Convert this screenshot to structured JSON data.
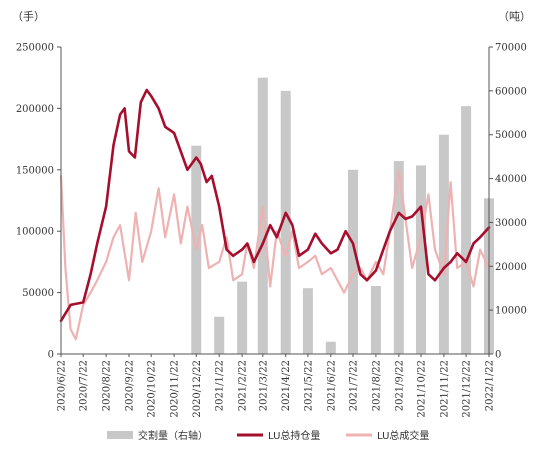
{
  "chart_data": {
    "type": "bar+line",
    "left_unit": "（手）",
    "right_unit": "（吨）",
    "y_left": {
      "ticks": [
        "0",
        "50000",
        "100000",
        "150000",
        "200000",
        "250000"
      ],
      "ylim": [
        0,
        250000
      ]
    },
    "y_right": {
      "ticks": [
        "0",
        "10000",
        "20000",
        "30000",
        "40000",
        "50000",
        "60000",
        "70000"
      ],
      "ylim": [
        0,
        70000
      ]
    },
    "x_ticks": [
      "2020/6/22",
      "2020/7/22",
      "2020/8/22",
      "2020/9/22",
      "2020/10/22",
      "2020/11/22",
      "2020/12/22",
      "2021/1/22",
      "2021/2/22",
      "2021/3/22",
      "2021/4/22",
      "2021/5/22",
      "2021/6/22",
      "2021/7/22",
      "2021/8/22",
      "2021/9/22",
      "2021/10/22",
      "2021/11/22",
      "2021/12/22",
      "2022/1/22"
    ],
    "legend": {
      "position": "bottom",
      "entries": [
        "交割量（右轴）",
        "LU总持仓量",
        "LU总成交量"
      ]
    },
    "colors": {
      "bars": "#c8c8c8",
      "open_interest": "#a50f2d",
      "volume": "#eeb2b2",
      "axis": "#555555"
    },
    "series": [
      {
        "name": "交割量（右轴）",
        "axis": "right",
        "kind": "bar",
        "x": [
          "2020/12/22",
          "2021/1/22",
          "2021/2/22",
          "2021/3/22",
          "2021/4/22",
          "2021/5/22",
          "2021/6/22",
          "2021/7/22",
          "2021/8/22",
          "2021/9/22",
          "2021/10/22",
          "2021/11/22",
          "2021/12/22",
          "2022/1/22"
        ],
        "values": [
          47500,
          8500,
          16500,
          63000,
          60000,
          15000,
          2800,
          42000,
          15500,
          44000,
          43000,
          50000,
          56500,
          35500
        ]
      },
      {
        "name": "LU总持仓量",
        "axis": "left",
        "kind": "line",
        "x": [
          "2020/6/22",
          "2020/7/5",
          "2020/7/22",
          "2020/8/1",
          "2020/8/10",
          "2020/8/22",
          "2020/9/1",
          "2020/9/10",
          "2020/9/16",
          "2020/9/22",
          "2020/9/30",
          "2020/10/8",
          "2020/10/16",
          "2020/10/22",
          "2020/11/1",
          "2020/11/10",
          "2020/11/22",
          "2020/12/1",
          "2020/12/10",
          "2020/12/22",
          "2020/12/28",
          "2021/1/5",
          "2021/1/12",
          "2021/1/22",
          "2021/2/1",
          "2021/2/10",
          "2021/2/22",
          "2021/3/1",
          "2021/3/10",
          "2021/3/22",
          "2021/4/1",
          "2021/4/10",
          "2021/4/22",
          "2021/5/1",
          "2021/5/10",
          "2021/5/22",
          "2021/6/1",
          "2021/6/10",
          "2021/6/22",
          "2021/7/1",
          "2021/7/12",
          "2021/7/22",
          "2021/8/1",
          "2021/8/10",
          "2021/8/22",
          "2021/9/1",
          "2021/9/10",
          "2021/9/22",
          "2021/10/1",
          "2021/10/10",
          "2021/10/22",
          "2021/11/1",
          "2021/11/10",
          "2021/11/22",
          "2021/12/1",
          "2021/12/10",
          "2021/12/22",
          "2022/1/1",
          "2022/1/10",
          "2022/1/22"
        ],
        "values": [
          27000,
          40000,
          42000,
          65000,
          90000,
          120000,
          170000,
          195000,
          200000,
          165000,
          160000,
          205000,
          215000,
          210000,
          200000,
          185000,
          180000,
          165000,
          150000,
          160000,
          155000,
          140000,
          145000,
          120000,
          85000,
          80000,
          85000,
          90000,
          75000,
          90000,
          105000,
          95000,
          115000,
          105000,
          80000,
          85000,
          98000,
          90000,
          82000,
          85000,
          100000,
          90000,
          65000,
          60000,
          68000,
          85000,
          100000,
          115000,
          110000,
          112000,
          120000,
          65000,
          60000,
          70000,
          75000,
          82000,
          75000,
          90000,
          95000,
          103000
        ]
      },
      {
        "name": "LU总成交量",
        "axis": "left",
        "kind": "line",
        "x": [
          "2020/6/22",
          "2020/6/28",
          "2020/7/5",
          "2020/7/12",
          "2020/7/22",
          "2020/8/1",
          "2020/8/10",
          "2020/8/22",
          "2020/9/1",
          "2020/9/10",
          "2020/9/22",
          "2020/10/1",
          "2020/10/10",
          "2020/10/22",
          "2020/11/1",
          "2020/11/10",
          "2020/11/22",
          "2020/12/1",
          "2020/12/10",
          "2020/12/22",
          "2020/12/30",
          "2021/1/8",
          "2021/1/22",
          "2021/2/1",
          "2021/2/10",
          "2021/2/22",
          "2021/3/1",
          "2021/3/10",
          "2021/3/22",
          "2021/4/1",
          "2021/4/10",
          "2021/4/22",
          "2021/5/1",
          "2021/5/10",
          "2021/5/22",
          "2021/6/1",
          "2021/6/10",
          "2021/6/22",
          "2021/7/1",
          "2021/7/10",
          "2021/7/22",
          "2021/8/1",
          "2021/8/10",
          "2021/8/22",
          "2021/9/1",
          "2021/9/10",
          "2021/9/22",
          "2021/10/1",
          "2021/10/10",
          "2021/10/22",
          "2021/11/1",
          "2021/11/10",
          "2021/11/22",
          "2021/12/1",
          "2021/12/10",
          "2021/12/22",
          "2022/1/1",
          "2022/1/10",
          "2022/1/22"
        ],
        "values": [
          145000,
          70000,
          20000,
          12000,
          40000,
          50000,
          60000,
          75000,
          95000,
          105000,
          60000,
          115000,
          75000,
          100000,
          135000,
          95000,
          130000,
          90000,
          120000,
          85000,
          105000,
          70000,
          75000,
          95000,
          60000,
          65000,
          90000,
          70000,
          120000,
          55000,
          100000,
          80000,
          100000,
          70000,
          75000,
          80000,
          65000,
          70000,
          60000,
          50000,
          65000,
          70000,
          60000,
          75000,
          65000,
          100000,
          150000,
          110000,
          70000,
          95000,
          130000,
          85000,
          65000,
          140000,
          70000,
          75000,
          55000,
          85000,
          70000
        ]
      }
    ]
  }
}
